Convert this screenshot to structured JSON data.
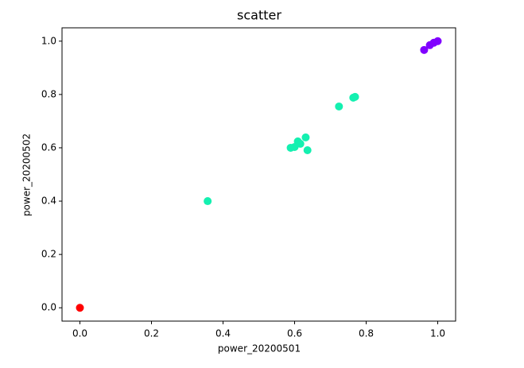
{
  "chart_data": {
    "type": "scatter",
    "title": "scatter",
    "x_label": "power_20200501",
    "y_label": "power_20200502",
    "xlim": [
      -0.05,
      1.05
    ],
    "ylim": [
      -0.05,
      1.05
    ],
    "xticks": [
      {
        "value": 0,
        "label": "0.0"
      },
      {
        "value": 0.2,
        "label": "0.2"
      },
      {
        "value": 0.4,
        "label": "0.4"
      },
      {
        "value": 0.6,
        "label": "0.6"
      },
      {
        "value": 0.8,
        "label": "0.8"
      },
      {
        "value": 1,
        "label": "1.0"
      }
    ],
    "yticks": [
      {
        "value": 0,
        "label": "0.0"
      },
      {
        "value": 0.2,
        "label": "0.2"
      },
      {
        "value": 0.4,
        "label": "0.4"
      },
      {
        "value": 0.6,
        "label": "0.6"
      },
      {
        "value": 0.8,
        "label": "0.8"
      },
      {
        "value": 1,
        "label": "1.0"
      }
    ],
    "series": [
      {
        "color": "#ff0000",
        "x": [
          0
        ],
        "y": [
          0
        ]
      },
      {
        "color": "#14f0b0",
        "x": [
          0.357,
          0.589,
          0.6,
          0.609,
          0.616,
          0.631,
          0.636,
          0.724,
          0.764,
          0.769
        ],
        "y": [
          0.4,
          0.6,
          0.603,
          0.624,
          0.615,
          0.639,
          0.591,
          0.755,
          0.788,
          0.791
        ]
      },
      {
        "color": "#8000ff",
        "x": [
          0.962,
          0.978,
          0.989,
          1.0
        ],
        "y": [
          0.967,
          0.985,
          0.994,
          1.0
        ]
      }
    ]
  }
}
